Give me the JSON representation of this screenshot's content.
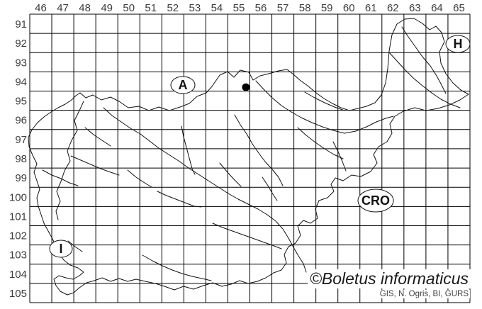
{
  "map_grid": {
    "column_labels": [
      "46",
      "47",
      "48",
      "49",
      "50",
      "51",
      "52",
      "53",
      "54",
      "55",
      "56",
      "57",
      "58",
      "59",
      "60",
      "61",
      "62",
      "63",
      "64",
      "65"
    ],
    "row_labels": [
      "91",
      "92",
      "93",
      "94",
      "95",
      "96",
      "97",
      "98",
      "99",
      "100",
      "101",
      "102",
      "103",
      "104",
      "105"
    ],
    "line_color": "#000000",
    "label_color": "#3d3d3d",
    "background_color": "#ffffff"
  },
  "neighbor_labels": {
    "austria": "A",
    "hungary": "H",
    "croatia": "CRO",
    "italy": "I"
  },
  "occurrence_record": {
    "marker": "filled-black-circle",
    "marker_color": "#000000",
    "grid_column": 55,
    "grid_row": 94,
    "cell_offset_x": 0.82,
    "cell_offset_y": 0.8
  },
  "attribution": {
    "brand": "©Boletus informaticus",
    "credits": "GIS, N. Ogris, BI, GURS"
  }
}
